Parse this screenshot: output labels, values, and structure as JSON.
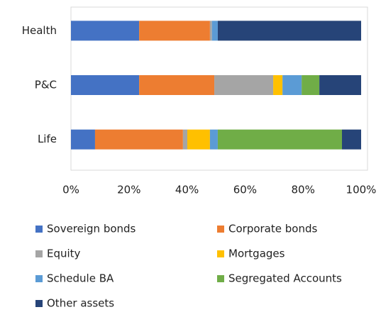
{
  "chart_data": {
    "type": "stacked_barh",
    "categories": [
      "Health",
      "P&C",
      "Life"
    ],
    "series": [
      {
        "name": "Sovereign bonds",
        "color": "#4472c4",
        "values": [
          23.5,
          23.5,
          8.3
        ]
      },
      {
        "name": "Corporate bonds",
        "color": "#ed7d31",
        "values": [
          24.4,
          25.9,
          30.3
        ]
      },
      {
        "name": "Equity",
        "color": "#a5a5a5",
        "values": [
          0.7,
          20.3,
          1.5
        ]
      },
      {
        "name": "Mortgages",
        "color": "#ffc000",
        "values": [
          0,
          3.2,
          7.8
        ]
      },
      {
        "name": "Schedule BA",
        "color": "#5b9bd5",
        "values": [
          2,
          6.6,
          2.7
        ]
      },
      {
        "name": "Segregated Accounts",
        "color": "#70ad47",
        "values": [
          0,
          6.1,
          42.8
        ]
      },
      {
        "name": "Other assets",
        "color": "#264478",
        "values": [
          49.4,
          14.4,
          6.6
        ]
      }
    ],
    "xlim": [
      0,
      100
    ],
    "xticks": [
      {
        "value": 0,
        "label": "0%"
      },
      {
        "value": 20,
        "label": "20%"
      },
      {
        "value": 40,
        "label": "40%"
      },
      {
        "value": 60,
        "label": "60%"
      },
      {
        "value": 80,
        "label": "80%"
      },
      {
        "value": 100,
        "label": "100%"
      }
    ],
    "legend": "bottom"
  }
}
